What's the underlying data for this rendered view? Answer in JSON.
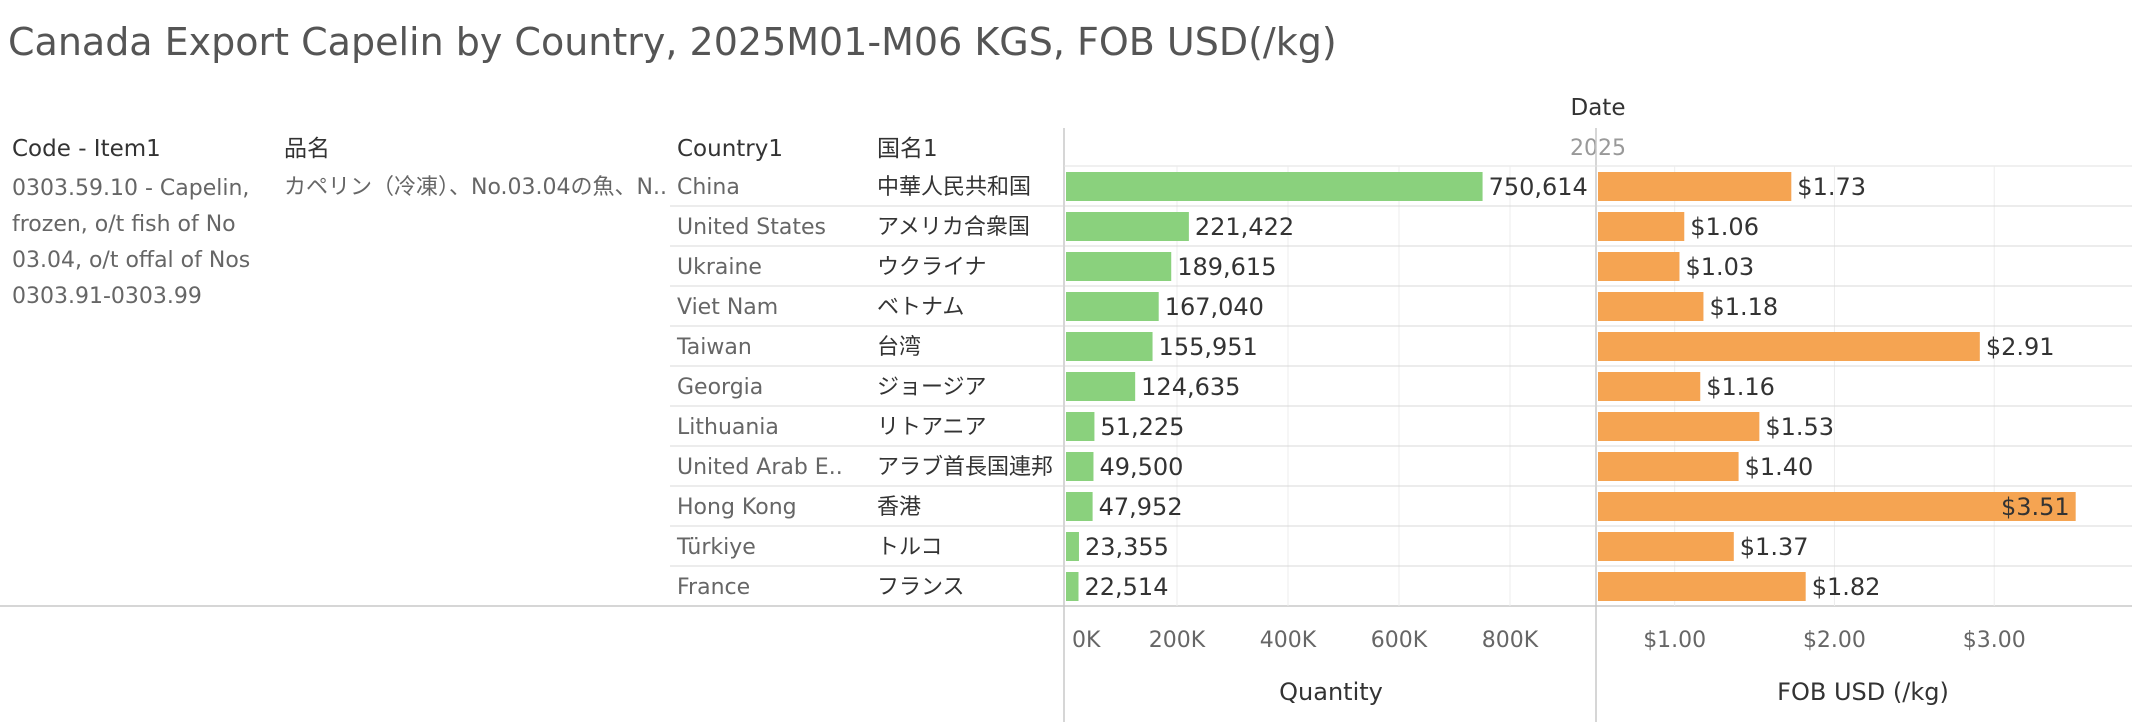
{
  "title": "Canada Export Capelin by Country, 2025M01-M06 KGS, FOB USD(/kg)",
  "date_header": "Date",
  "year": "2025",
  "headers": {
    "code_item": "Code - Item1",
    "item_name_jp": "品名",
    "country": "Country1",
    "country_jp": "国名1"
  },
  "item": {
    "code_lines": [
      "0303.59.10 - Capelin,",
      "frozen, o/t fish of No",
      "03.04, o/t offal of Nos",
      "0303.91-0303.99"
    ],
    "name_jp": "カペリン（冷凍）、No.03.04の魚、N.."
  },
  "chart_data": [
    {
      "type": "bar",
      "orientation": "horizontal",
      "xlabel": "Quantity",
      "categories": [
        "China",
        "United States",
        "Ukraine",
        "Viet Nam",
        "Taiwan",
        "Georgia",
        "Lithuania",
        "United Arab E..",
        "Hong Kong",
        "Türkiye",
        "France"
      ],
      "categories_jp": [
        "中華人民共和国",
        "アメリカ合衆国",
        "ウクライナ",
        "ベトナム",
        "台湾",
        "ジョージア",
        "リトアニア",
        "アラブ首長国連邦",
        "香港",
        "トルコ",
        "フランス"
      ],
      "values": [
        750614,
        221422,
        189615,
        167040,
        155951,
        124635,
        51225,
        49500,
        47952,
        23355,
        22514
      ],
      "value_labels": [
        "750,614",
        "221,422",
        "189,615",
        "167,040",
        "155,951",
        "124,635",
        "51,225",
        "49,500",
        "47,952",
        "23,355",
        "22,514"
      ],
      "xticks": [
        0,
        200000,
        400000,
        600000,
        800000
      ],
      "xtick_labels": [
        "0K",
        "200K",
        "400K",
        "600K",
        "800K"
      ],
      "xlim": [
        0,
        955000
      ],
      "color": "#8ad17d"
    },
    {
      "type": "bar",
      "orientation": "horizontal",
      "xlabel": "FOB USD (/kg)",
      "categories": [
        "China",
        "United States",
        "Ukraine",
        "Viet Nam",
        "Taiwan",
        "Georgia",
        "Lithuania",
        "United Arab E..",
        "Hong Kong",
        "Türkiye",
        "France"
      ],
      "values": [
        1.73,
        1.06,
        1.03,
        1.18,
        2.91,
        1.16,
        1.53,
        1.4,
        3.51,
        1.37,
        1.82
      ],
      "value_labels": [
        "$1.73",
        "$1.06",
        "$1.03",
        "$1.18",
        "$2.91",
        "$1.16",
        "$1.53",
        "$1.40",
        "$3.51",
        "$1.37",
        "$1.82"
      ],
      "xticks": [
        1,
        2,
        3
      ],
      "xtick_labels": [
        "$1.00",
        "$2.00",
        "$3.00"
      ],
      "xlim": [
        0.52,
        3.85
      ],
      "color": "#f5a452"
    }
  ]
}
